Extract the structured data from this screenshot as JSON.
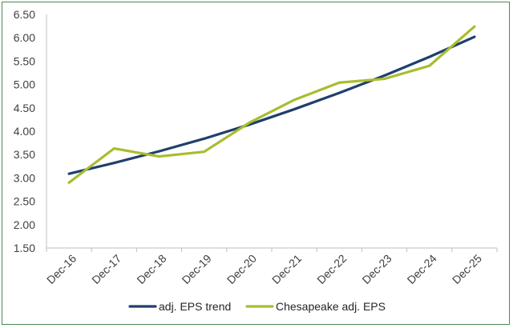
{
  "chart_data": {
    "type": "line",
    "categories": [
      "Dec-16",
      "Dec-17",
      "Dec-18",
      "Dec-19",
      "Dec-20",
      "Dec-21",
      "Dec-22",
      "Dec-23",
      "Dec-24",
      "Dec-25"
    ],
    "yticks": [
      "1.50",
      "2.00",
      "2.50",
      "3.00",
      "3.50",
      "4.00",
      "4.50",
      "5.00",
      "5.50",
      "6.00",
      "6.50"
    ],
    "ylim": [
      1.5,
      6.5
    ],
    "grid": false,
    "legend_position": "bottom",
    "series": [
      {
        "name": "adj. EPS trend",
        "color": "#1f3f6e",
        "values": [
          3.09,
          3.32,
          3.57,
          3.84,
          4.14,
          4.47,
          4.82,
          5.19,
          5.59,
          6.02
        ]
      },
      {
        "name": "Chesapeake adj. EPS",
        "color": "#a8bd2e",
        "values": [
          2.9,
          3.63,
          3.46,
          3.56,
          4.18,
          4.67,
          5.04,
          5.12,
          5.4,
          6.24
        ]
      }
    ]
  }
}
